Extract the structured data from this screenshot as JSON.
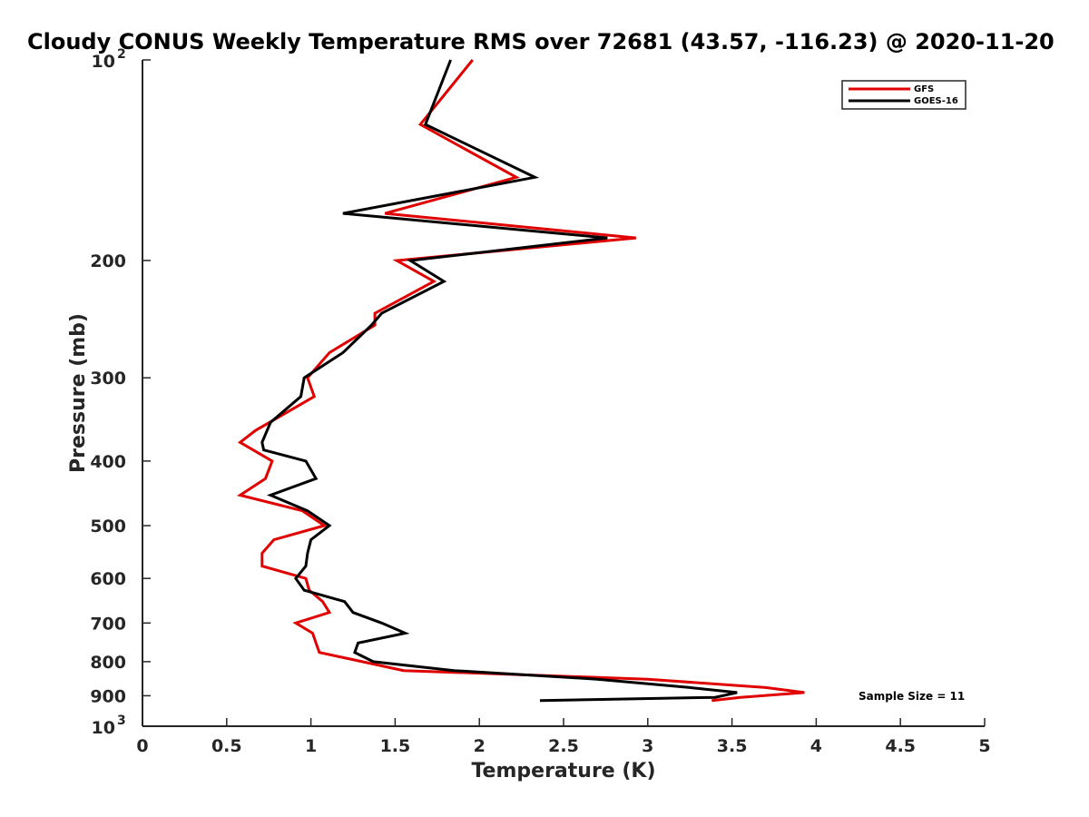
{
  "chart_data": {
    "type": "line",
    "title": "Cloudy CONUS Weekly Temperature RMS over 72681 (43.57, -116.23) @ 2020-11-20",
    "xlabel": "Temperature (K)",
    "ylabel": "Pressure (mb)",
    "xlim": [
      0,
      5
    ],
    "ylim": [
      100,
      1000
    ],
    "y_scale": "log",
    "y_reversed": true,
    "grid": false,
    "legend_position": "top-right",
    "x_ticks": [
      "0",
      "0.5",
      "1",
      "1.5",
      "2",
      "2.5",
      "3",
      "3.5",
      "4",
      "4.5",
      "5"
    ],
    "x_tick_values": [
      0,
      0.5,
      1,
      1.5,
      2,
      2.5,
      3,
      3.5,
      4,
      4.5,
      5
    ],
    "y_ticks": [
      {
        "value": 100,
        "base": "10",
        "exp": "2"
      },
      {
        "value": 200,
        "label": "200"
      },
      {
        "value": 300,
        "label": "300"
      },
      {
        "value": 400,
        "label": "400"
      },
      {
        "value": 500,
        "label": "500"
      },
      {
        "value": 600,
        "label": "600"
      },
      {
        "value": 700,
        "label": "700"
      },
      {
        "value": 800,
        "label": "800"
      },
      {
        "value": 900,
        "label": "900"
      },
      {
        "value": 1000,
        "base": "10",
        "exp": "3"
      }
    ],
    "annotation": "Sample Size = 11",
    "series": [
      {
        "name": "GFS",
        "color": "#e00000",
        "points": [
          [
            1.96,
            100
          ],
          [
            1.65,
            125
          ],
          [
            2.22,
            150
          ],
          [
            1.44,
            170
          ],
          [
            2.93,
            185
          ],
          [
            1.51,
            200
          ],
          [
            1.73,
            215
          ],
          [
            1.38,
            240
          ],
          [
            1.38,
            250
          ],
          [
            1.11,
            275
          ],
          [
            0.98,
            300
          ],
          [
            1.02,
            320
          ],
          [
            0.67,
            360
          ],
          [
            0.58,
            375
          ],
          [
            0.77,
            400
          ],
          [
            0.73,
            425
          ],
          [
            0.58,
            450
          ],
          [
            0.95,
            475
          ],
          [
            1.08,
            500
          ],
          [
            0.78,
            525
          ],
          [
            0.71,
            550
          ],
          [
            0.71,
            575
          ],
          [
            0.97,
            600
          ],
          [
            0.99,
            625
          ],
          [
            1.07,
            650
          ],
          [
            1.11,
            675
          ],
          [
            0.91,
            700
          ],
          [
            1.01,
            725
          ],
          [
            1.03,
            750
          ],
          [
            1.05,
            775
          ],
          [
            1.55,
            825
          ],
          [
            3.0,
            850
          ],
          [
            3.7,
            875
          ],
          [
            3.93,
            890
          ],
          [
            3.55,
            905
          ],
          [
            3.38,
            915
          ]
        ]
      },
      {
        "name": "GOES-16",
        "color": "#000000",
        "points": [
          [
            1.83,
            100
          ],
          [
            1.68,
            125
          ],
          [
            2.33,
            150
          ],
          [
            1.19,
            170
          ],
          [
            2.76,
            185
          ],
          [
            1.59,
            200
          ],
          [
            1.79,
            215
          ],
          [
            1.42,
            240
          ],
          [
            1.36,
            250
          ],
          [
            1.19,
            275
          ],
          [
            0.96,
            300
          ],
          [
            0.94,
            320
          ],
          [
            0.76,
            350
          ],
          [
            0.71,
            375
          ],
          [
            0.72,
            385
          ],
          [
            0.97,
            400
          ],
          [
            1.03,
            425
          ],
          [
            0.76,
            450
          ],
          [
            0.98,
            475
          ],
          [
            1.11,
            500
          ],
          [
            1.0,
            525
          ],
          [
            0.98,
            550
          ],
          [
            0.97,
            575
          ],
          [
            0.91,
            600
          ],
          [
            0.96,
            625
          ],
          [
            1.2,
            650
          ],
          [
            1.25,
            675
          ],
          [
            1.42,
            700
          ],
          [
            1.56,
            725
          ],
          [
            1.28,
            750
          ],
          [
            1.26,
            775
          ],
          [
            1.37,
            800
          ],
          [
            1.85,
            825
          ],
          [
            2.7,
            850
          ],
          [
            3.25,
            875
          ],
          [
            3.53,
            890
          ],
          [
            3.4,
            905
          ],
          [
            2.36,
            915
          ]
        ]
      }
    ]
  }
}
